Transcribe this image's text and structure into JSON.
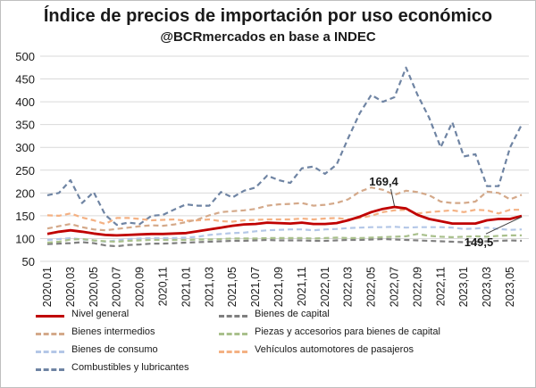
{
  "chart_data": {
    "type": "line",
    "title": "Índice de precios de importación por uso económico",
    "subtitle": "@BCRmercados en base a INDEC",
    "xlabel": "",
    "ylabel": "",
    "ylim": [
      50,
      500
    ],
    "yticks": [
      50,
      100,
      150,
      200,
      250,
      300,
      350,
      400,
      450,
      500
    ],
    "grid": true,
    "legend_position": "bottom",
    "x": [
      "2020,01",
      "2020,02",
      "2020,03",
      "2020,04",
      "2020,05",
      "2020,06",
      "2020,07",
      "2020,08",
      "2020,09",
      "2020,10",
      "2020,11",
      "2020,12",
      "2021,01",
      "2021,02",
      "2021,03",
      "2021,04",
      "2021,05",
      "2021,06",
      "2021,07",
      "2021,08",
      "2021,09",
      "2021,10",
      "2021,11",
      "2021,12",
      "2022,01",
      "2022,02",
      "2022,03",
      "2022,04",
      "2022,05",
      "2022,06",
      "2022,07",
      "2022,08",
      "2022,09",
      "2022,10",
      "2022,11",
      "2022,12",
      "2023,01",
      "2023,02",
      "2023,03",
      "2023,04",
      "2023,05",
      "2023,06"
    ],
    "xtick_labels": [
      "2020,01",
      "2020,03",
      "2020,05",
      "2020,07",
      "2020,09",
      "2020,11",
      "2021,01",
      "2021,03",
      "2021,05",
      "2021,07",
      "2021,09",
      "2021,11",
      "2022,01",
      "2022,03",
      "2022,05",
      "2022,07",
      "2022,09",
      "2022,11",
      "2023,01",
      "2023,03",
      "2023,05"
    ],
    "series": [
      {
        "name": "Combustibles y lubricantes",
        "color": "#6f84a3",
        "dash": "6,4",
        "width": 2.2,
        "values": [
          195,
          200,
          228,
          178,
          202,
          152,
          130,
          135,
          132,
          150,
          152,
          164,
          175,
          172,
          172,
          202,
          190,
          205,
          212,
          238,
          228,
          222,
          254,
          258,
          242,
          262,
          320,
          375,
          415,
          400,
          410,
          475,
          415,
          365,
          300,
          355,
          280,
          285,
          215,
          215,
          300,
          350
        ]
      },
      {
        "name": "Vehículos automotores de pasajeros",
        "color": "#f4b183",
        "dash": "6,4",
        "width": 2.2,
        "values": [
          151,
          150,
          155,
          146,
          140,
          132,
          145,
          145,
          143,
          140,
          141,
          142,
          139,
          140,
          142,
          138,
          137,
          140,
          141,
          142,
          142,
          142,
          144,
          142,
          144,
          145,
          142,
          145,
          150,
          158,
          162,
          163,
          155,
          158,
          160,
          162,
          158,
          163,
          162,
          155,
          163,
          163
        ]
      },
      {
        "name": "Bienes intermedios",
        "color": "#d4a98a",
        "dash": "6,4",
        "width": 2.2,
        "values": [
          122,
          127,
          132,
          125,
          120,
          118,
          121,
          124,
          127,
          129,
          128,
          131,
          136,
          142,
          151,
          158,
          160,
          162,
          165,
          172,
          175,
          176,
          178,
          172,
          174,
          178,
          186,
          203,
          212,
          207,
          196,
          205,
          202,
          195,
          181,
          178,
          178,
          181,
          203,
          200,
          186,
          196
        ]
      },
      {
        "name": "Nivel general",
        "color": "#c00000",
        "dash": "",
        "width": 2.8,
        "values": [
          110,
          115,
          118,
          115,
          111,
          108,
          107,
          108,
          109,
          110,
          110,
          111,
          112,
          116,
          120,
          124,
          128,
          131,
          132,
          135,
          134,
          133,
          135,
          132,
          132,
          134,
          140,
          148,
          158,
          165,
          169.4,
          166,
          152,
          143,
          138,
          133,
          133,
          133,
          140,
          143,
          143,
          149.5
        ]
      },
      {
        "name": "Bienes de consumo",
        "color": "#b4c7e7",
        "dash": "6,4",
        "width": 2.2,
        "values": [
          97,
          99,
          101,
          98,
          96,
          93,
          96,
          99,
          100,
          101,
          101,
          101,
          102,
          104,
          108,
          110,
          112,
          113,
          116,
          118,
          119,
          120,
          120,
          118,
          120,
          121,
          123,
          124,
          125,
          125,
          126,
          124,
          125,
          125,
          125,
          124,
          121,
          122,
          124,
          121,
          119,
          120
        ]
      },
      {
        "name": "Bienes de capital",
        "color": "#7f7f7f",
        "dash": "6,4",
        "width": 2.2,
        "values": [
          88,
          89,
          90,
          92,
          90,
          85,
          83,
          86,
          87,
          89,
          89,
          90,
          91,
          92,
          93,
          94,
          95,
          95,
          96,
          97,
          96,
          96,
          96,
          95,
          95,
          96,
          97,
          97,
          98,
          99,
          98,
          97,
          96,
          95,
          94,
          93,
          92,
          93,
          94,
          95,
          96,
          95
        ]
      },
      {
        "name": "Piezas y accesorios para bienes de capital",
        "color": "#a9c08c",
        "dash": "6,4",
        "width": 2.2,
        "values": [
          91,
          93,
          98,
          99,
          96,
          94,
          93,
          95,
          96,
          97,
          97,
          97,
          97,
          98,
          98,
          99,
          100,
          100,
          100,
          101,
          101,
          101,
          101,
          100,
          101,
          102,
          101,
          101,
          102,
          103,
          104,
          105,
          110,
          106,
          104,
          103,
          104,
          105,
          104,
          106,
          107,
          107
        ]
      }
    ],
    "annotations": [
      {
        "text": "169,4",
        "x": "2022,07",
        "value": 169.4
      },
      {
        "text": "149,5",
        "x": "2023,06",
        "value": 149.5
      }
    ]
  },
  "legend": [
    {
      "name": "Nivel general",
      "color": "#c00000",
      "solid": true
    },
    {
      "name": "Bienes de capital",
      "color": "#7f7f7f",
      "solid": false
    },
    {
      "name": "Bienes intermedios",
      "color": "#d4a98a",
      "solid": false
    },
    {
      "name": "Piezas y accesorios para bienes de capital",
      "color": "#a9c08c",
      "solid": false
    },
    {
      "name": "Bienes de consumo",
      "color": "#b4c7e7",
      "solid": false
    },
    {
      "name": "Vehículos automotores de pasajeros",
      "color": "#f4b183",
      "solid": false
    },
    {
      "name": "Combustibles y lubricantes",
      "color": "#6f84a3",
      "solid": false
    }
  ]
}
